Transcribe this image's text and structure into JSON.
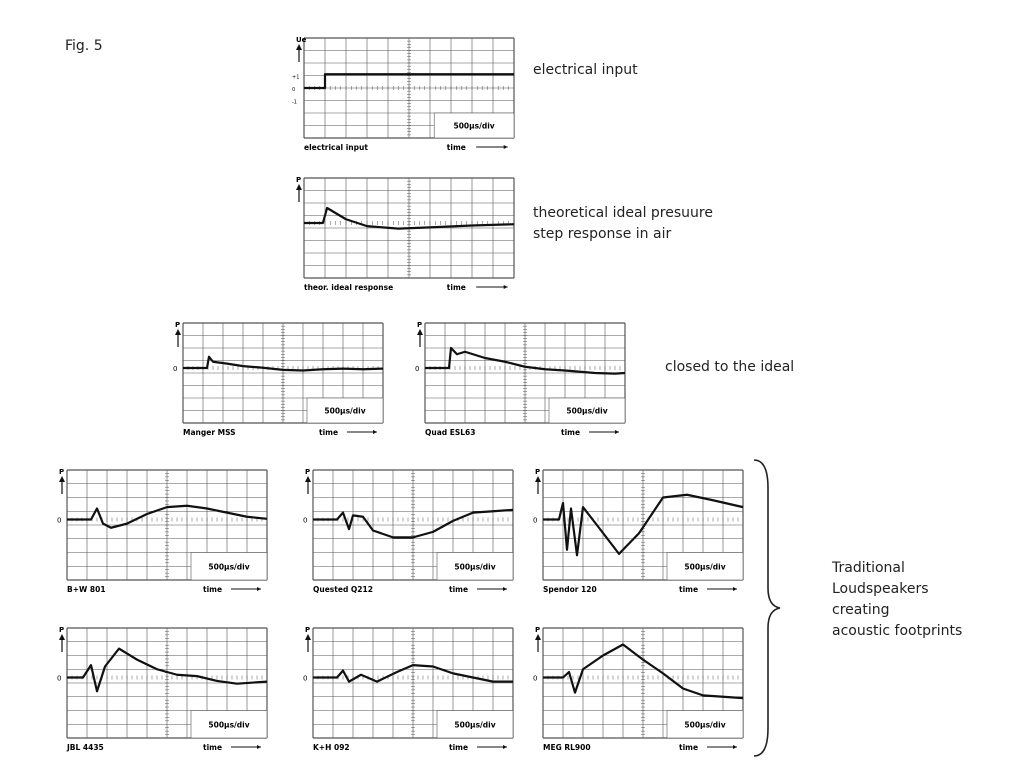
{
  "figure_label": "Fig. 5",
  "side_labels": {
    "electrical_input": "electrical input",
    "ideal_line1": "theoretical ideal presuure",
    "ideal_line2": "step response in air",
    "closed": "closed to the ideal",
    "traditional": [
      "Traditional",
      "Loudspeakers",
      "creating",
      "acoustic footprints"
    ]
  },
  "axis_time_label": "time",
  "scale_label": "500µs/div",
  "p_label": "P",
  "zero_label": "0",
  "panels": [
    {
      "id": "electrical-input",
      "caption": "electrical input",
      "ylabel": "Ue",
      "yticks": [
        "+1",
        "0",
        "-1"
      ],
      "curve": "step",
      "scale": true
    },
    {
      "id": "theor-ideal",
      "caption": "theor. ideal response",
      "ylabel": "P",
      "yticks": [],
      "curve": "ideal",
      "scale": false
    },
    {
      "id": "manger-mss",
      "caption": "Manger MSS",
      "ylabel": "P",
      "curve": "manger",
      "scale": true
    },
    {
      "id": "quad-esl63",
      "caption": "Quad ESL63",
      "ylabel": "P",
      "curve": "quad",
      "scale": true
    },
    {
      "id": "bw-801",
      "caption": "B+W 801",
      "ylabel": "P",
      "curve": "bw",
      "scale": true
    },
    {
      "id": "quested-q212",
      "caption": "Quested Q212",
      "ylabel": "P",
      "curve": "quested",
      "scale": true
    },
    {
      "id": "spendor-120",
      "caption": "Spendor 120",
      "ylabel": "P",
      "curve": "spendor",
      "scale": true
    },
    {
      "id": "jbl-4435",
      "caption": "JBL 4435",
      "ylabel": "P",
      "curve": "jbl",
      "scale": true
    },
    {
      "id": "kh-092",
      "caption": "K+H 092",
      "ylabel": "P",
      "curve": "kh",
      "scale": true
    },
    {
      "id": "meg-rl900",
      "caption": "MEG RL900",
      "ylabel": "P",
      "curve": "meg",
      "scale": true
    }
  ]
}
